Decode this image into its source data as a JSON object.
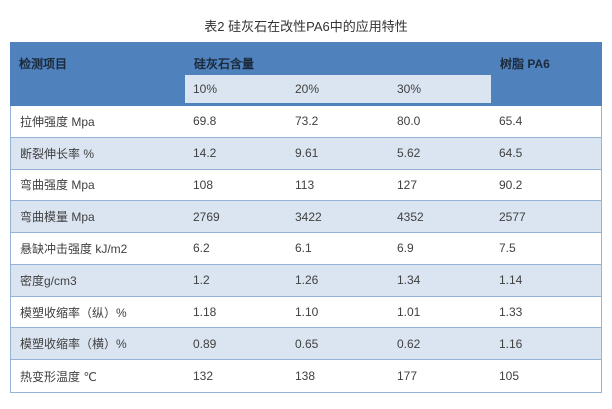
{
  "title": "表2 硅灰石在改性PA6中的应用特性",
  "colors": {
    "header_bg": "#4f81bd",
    "strip_bg": "#dbe5f1",
    "alt_row_bg": "#dbe5f1",
    "border": "#95b3d7",
    "header_text": "#1c2b3c",
    "body_text": "#404040",
    "title_text": "#333333"
  },
  "table": {
    "col_item_header": "检测项目",
    "group_header": "硅灰石含量",
    "resin_header": "树脂 PA6",
    "subheaders": [
      "10%",
      "20%",
      "30%"
    ],
    "rows": [
      {
        "label": "拉伸强度 Mpa",
        "values": [
          "69.8",
          "73.2",
          "80.0",
          "65.4"
        ]
      },
      {
        "label": "断裂伸长率 %",
        "values": [
          "14.2",
          "9.61",
          "5.62",
          "64.5"
        ]
      },
      {
        "label": "弯曲强度 Mpa",
        "values": [
          "108",
          "113",
          "127",
          "90.2"
        ]
      },
      {
        "label": "弯曲模量 Mpa",
        "values": [
          "2769",
          "3422",
          "4352",
          "2577"
        ]
      },
      {
        "label": "悬缺冲击强度 kJ/m2",
        "values": [
          "6.2",
          "6.1",
          "6.9",
          "7.5"
        ]
      },
      {
        "label": "密度g/cm3",
        "values": [
          "1.2",
          "1.26",
          "1.34",
          "1.14"
        ]
      },
      {
        "label": "模塑收缩率（纵）%",
        "values": [
          "1.18",
          "1.10",
          "1.01",
          "1.33"
        ]
      },
      {
        "label": "模塑收缩率（横）%",
        "values": [
          "0.89",
          "0.65",
          "0.62",
          "1.16"
        ]
      },
      {
        "label": "热变形温度 ℃",
        "values": [
          "132",
          "138",
          "177",
          "105"
        ]
      }
    ]
  },
  "chart_data": {
    "type": "table",
    "title": "表2 硅灰石在改性PA6中的应用特性",
    "columns": [
      "检测项目",
      "硅灰石含量 10%",
      "硅灰石含量 20%",
      "硅灰石含量 30%",
      "树脂 PA6"
    ],
    "rows": [
      [
        "拉伸强度 Mpa",
        69.8,
        73.2,
        80.0,
        65.4
      ],
      [
        "断裂伸长率 %",
        14.2,
        9.61,
        5.62,
        64.5
      ],
      [
        "弯曲强度 Mpa",
        108,
        113,
        127,
        90.2
      ],
      [
        "弯曲模量 Mpa",
        2769,
        3422,
        4352,
        2577
      ],
      [
        "悬缺冲击强度 kJ/m2",
        6.2,
        6.1,
        6.9,
        7.5
      ],
      [
        "密度g/cm3",
        1.2,
        1.26,
        1.34,
        1.14
      ],
      [
        "模塑收缩率（纵）%",
        1.18,
        1.1,
        1.01,
        1.33
      ],
      [
        "模塑收缩率（横）%",
        0.89,
        0.65,
        0.62,
        1.16
      ],
      [
        "热变形温度 ℃",
        132,
        138,
        177,
        105
      ]
    ]
  }
}
